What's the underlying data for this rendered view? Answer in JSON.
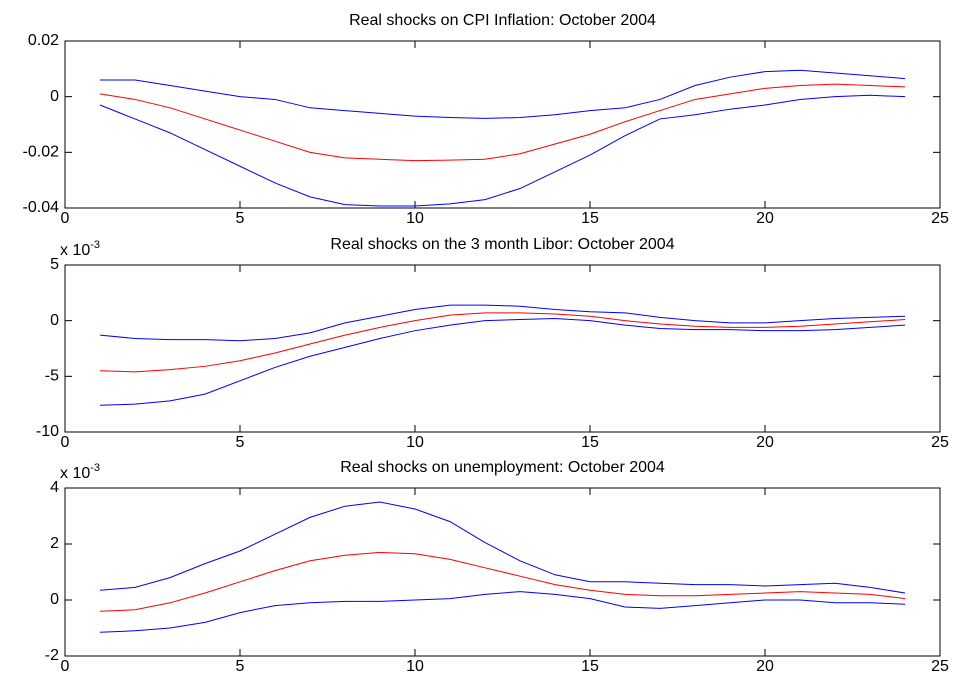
{
  "chart_data": [
    {
      "type": "line",
      "title": "Real shocks on CPI Inflation: October 2004",
      "x": [
        1,
        2,
        3,
        4,
        5,
        6,
        7,
        8,
        9,
        10,
        11,
        12,
        13,
        14,
        15,
        16,
        17,
        18,
        19,
        20,
        21,
        22,
        23,
        24
      ],
      "xlim": [
        0,
        25
      ],
      "xticks": [
        0,
        5,
        10,
        15,
        20,
        25
      ],
      "ylim": [
        -0.04,
        0.02
      ],
      "yticks": [
        -0.04,
        -0.02,
        0,
        0.02
      ],
      "grid": false,
      "series": [
        {
          "color": "#0000ff",
          "values": [
            0.006,
            0.006,
            0.004,
            0.002,
            0.0,
            -0.001,
            -0.004,
            -0.005,
            -0.006,
            -0.007,
            -0.0075,
            -0.0078,
            -0.0075,
            -0.0065,
            -0.005,
            -0.004,
            -0.001,
            0.004,
            0.007,
            0.009,
            0.0095,
            0.0085,
            0.0075,
            0.0065
          ]
        },
        {
          "color": "#ff0000",
          "values": [
            0.001,
            -0.001,
            -0.004,
            -0.008,
            -0.012,
            -0.016,
            -0.02,
            -0.022,
            -0.0225,
            -0.023,
            -0.0228,
            -0.0225,
            -0.0205,
            -0.017,
            -0.0135,
            -0.009,
            -0.005,
            -0.001,
            0.001,
            0.003,
            0.004,
            0.0045,
            0.004,
            0.0035
          ]
        },
        {
          "color": "#0000ff",
          "values": [
            -0.003,
            -0.008,
            -0.013,
            -0.019,
            -0.025,
            -0.031,
            -0.036,
            -0.0388,
            -0.0393,
            -0.0393,
            -0.0385,
            -0.037,
            -0.033,
            -0.027,
            -0.021,
            -0.014,
            -0.008,
            -0.0065,
            -0.0045,
            -0.003,
            -0.001,
            0.0,
            0.0005,
            0.0
          ]
        }
      ]
    },
    {
      "type": "line",
      "title": "Real shocks on the 3 month Libor: October 2004",
      "exponent_label": {
        "base": "x 10",
        "power": "-3"
      },
      "x": [
        1,
        2,
        3,
        4,
        5,
        6,
        7,
        8,
        9,
        10,
        11,
        12,
        13,
        14,
        15,
        16,
        17,
        18,
        19,
        20,
        21,
        22,
        23,
        24
      ],
      "xlim": [
        0,
        25
      ],
      "xticks": [
        0,
        5,
        10,
        15,
        20,
        25
      ],
      "ylim": [
        -10,
        5
      ],
      "yticks": [
        -10,
        -5,
        0,
        5
      ],
      "grid": false,
      "series": [
        {
          "color": "#0000ff",
          "values": [
            -1.3,
            -1.6,
            -1.7,
            -1.7,
            -1.8,
            -1.6,
            -1.1,
            -0.2,
            0.4,
            1.0,
            1.4,
            1.4,
            1.3,
            1.0,
            0.8,
            0.7,
            0.3,
            0.0,
            -0.2,
            -0.2,
            0.0,
            0.2,
            0.3,
            0.4
          ]
        },
        {
          "color": "#ff0000",
          "values": [
            -4.5,
            -4.6,
            -4.4,
            -4.1,
            -3.6,
            -2.9,
            -2.1,
            -1.3,
            -0.6,
            0.0,
            0.5,
            0.7,
            0.7,
            0.6,
            0.4,
            0.0,
            -0.3,
            -0.5,
            -0.6,
            -0.6,
            -0.5,
            -0.3,
            -0.1,
            0.1
          ]
        },
        {
          "color": "#0000ff",
          "values": [
            -7.6,
            -7.5,
            -7.2,
            -6.6,
            -5.4,
            -4.2,
            -3.2,
            -2.4,
            -1.6,
            -0.9,
            -0.4,
            0.0,
            0.1,
            0.2,
            0.0,
            -0.4,
            -0.7,
            -0.8,
            -0.8,
            -0.9,
            -0.9,
            -0.8,
            -0.6,
            -0.4
          ]
        }
      ]
    },
    {
      "type": "line",
      "title": "Real shocks on unemployment: October 2004",
      "exponent_label": {
        "base": "x 10",
        "power": "-3"
      },
      "x": [
        1,
        2,
        3,
        4,
        5,
        6,
        7,
        8,
        9,
        10,
        11,
        12,
        13,
        14,
        15,
        16,
        17,
        18,
        19,
        20,
        21,
        22,
        23,
        24
      ],
      "xlim": [
        0,
        25
      ],
      "xticks": [
        0,
        5,
        10,
        15,
        20,
        25
      ],
      "ylim": [
        -2,
        4
      ],
      "yticks": [
        -2,
        0,
        2,
        4
      ],
      "grid": false,
      "series": [
        {
          "color": "#0000ff",
          "values": [
            0.35,
            0.45,
            0.8,
            1.3,
            1.75,
            2.35,
            2.95,
            3.35,
            3.5,
            3.25,
            2.8,
            2.05,
            1.4,
            0.9,
            0.65,
            0.65,
            0.6,
            0.55,
            0.55,
            0.5,
            0.55,
            0.6,
            0.45,
            0.25
          ]
        },
        {
          "color": "#ff0000",
          "values": [
            -0.4,
            -0.35,
            -0.1,
            0.25,
            0.65,
            1.05,
            1.4,
            1.6,
            1.7,
            1.65,
            1.45,
            1.15,
            0.85,
            0.55,
            0.35,
            0.2,
            0.15,
            0.15,
            0.2,
            0.25,
            0.3,
            0.25,
            0.2,
            0.05
          ]
        },
        {
          "color": "#0000ff",
          "values": [
            -1.15,
            -1.1,
            -1.0,
            -0.8,
            -0.45,
            -0.2,
            -0.1,
            -0.05,
            -0.05,
            0.0,
            0.05,
            0.2,
            0.3,
            0.2,
            0.05,
            -0.25,
            -0.3,
            -0.2,
            -0.1,
            0.0,
            0.0,
            -0.1,
            -0.1,
            -0.15
          ]
        }
      ]
    }
  ]
}
